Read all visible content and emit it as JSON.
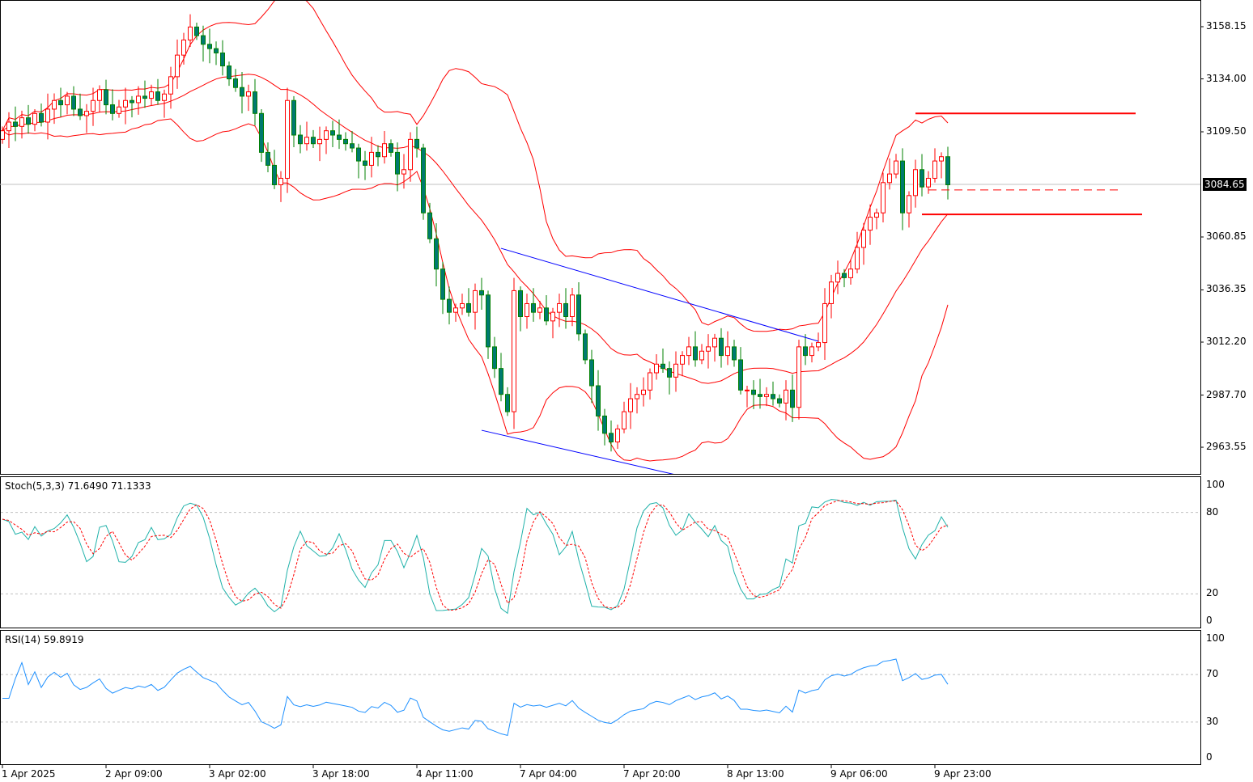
{
  "chart_data": {
    "type": "candlestick",
    "symbol_current_price": "3084.65",
    "price_axis_ticks": [
      "3158.15",
      "3134.00",
      "3109.50",
      "3084.65",
      "3060.85",
      "3036.35",
      "3012.20",
      "2987.70",
      "2963.55"
    ],
    "price_axis_values": [
      3158.15,
      3134.0,
      3109.5,
      3060.85,
      3036.35,
      3012.2,
      2987.7,
      2963.55
    ],
    "ylim": [
      2949.5,
      3170.5
    ],
    "time_labels": [
      "1 Apr 2025",
      "2 Apr 09:00",
      "3 Apr 02:00",
      "3 Apr 18:00",
      "4 Apr 11:00",
      "7 Apr 04:00",
      "7 Apr 20:00",
      "8 Apr 13:00",
      "9 Apr 06:00",
      "9 Apr 23:00"
    ],
    "time_label_every_n_candles": 16,
    "first_open": 3106,
    "closes": [
      3110,
      3114,
      3112,
      3116,
      3113,
      3118,
      3114,
      3120,
      3124,
      3122,
      3126,
      3120,
      3117,
      3119,
      3124,
      3129,
      3122,
      3118,
      3121,
      3124,
      3123,
      3126,
      3125,
      3128,
      3124,
      3127,
      3135,
      3145,
      3152,
      3158,
      3154,
      3150,
      3148,
      3146,
      3140,
      3134,
      3130,
      3126,
      3128,
      3118,
      3100,
      3094,
      3085,
      3088,
      3124,
      3108,
      3104,
      3107,
      3104,
      3106,
      3110,
      3108,
      3106,
      3104,
      3102,
      3096,
      3094,
      3100,
      3098,
      3104,
      3100,
      3090,
      3092,
      3106,
      3102,
      3072,
      3060,
      3046,
      3032,
      3026,
      3028,
      3030,
      3026,
      3036,
      3034,
      3010,
      3000,
      2988,
      2980,
      3036,
      3024,
      3030,
      3026,
      3028,
      3022,
      3026,
      3030,
      3024,
      3034,
      3016,
      3004,
      2992,
      2978,
      2970,
      2966,
      2972,
      2980,
      2986,
      2988,
      2990,
      2998,
      3002,
      3000,
      2996,
      3002,
      3006,
      3010,
      3004,
      3008,
      3010,
      3014,
      3006,
      3010,
      3004,
      2990,
      2990,
      2988,
      2987,
      2988,
      2986,
      2984,
      2990,
      2982,
      3010,
      3006,
      3010,
      3012,
      3030,
      3040,
      3044,
      3042,
      3046,
      3056,
      3064,
      3070,
      3072,
      3086,
      3090,
      3096,
      3072,
      3080,
      3092,
      3084,
      3088,
      3096,
      3098,
      3085
    ],
    "bollinger": {
      "period": 20,
      "deviation": 2
    },
    "trendlines": [
      {
        "from": {
          "candle": 77,
          "price": 3055.6
        },
        "to": {
          "candle": 126,
          "price": 3012.6
        },
        "color": "#0000ff"
      },
      {
        "from": {
          "candle": 74,
          "price": 2971.4
        },
        "to": {
          "candle": 104,
          "price": 2950.8
        },
        "color": "#0000ff"
      }
    ],
    "hlines": [
      {
        "price": 3118.0,
        "from_candle": 141,
        "to_candle": 175,
        "color": "#ff0000",
        "style": "solid"
      },
      {
        "price": 3071.3,
        "from_candle": 142,
        "to_candle": 176,
        "color": "#ff0000",
        "style": "solid"
      },
      {
        "price": 3082.6,
        "from_candle": 143,
        "to_candle": 173,
        "color": "#ff0000",
        "style": "dashed"
      }
    ],
    "stochastic": {
      "title": "Stoch(5,3,3) 71.6490 71.1333",
      "k": 5,
      "d": 3,
      "slowing": 3,
      "levels": [
        20,
        80
      ],
      "ticks": [
        "100",
        "80",
        "20",
        "0"
      ],
      "k_color": "#20b2aa",
      "d_color": "#ff0000"
    },
    "rsi": {
      "title": "RSI(14) 59.8919",
      "period": 14,
      "levels": [
        30,
        70
      ],
      "ticks": [
        "100",
        "70",
        "30",
        "0"
      ],
      "color": "#1e90ff"
    },
    "colors": {
      "bull": "#ff0000",
      "bull_fill": "#ffffff",
      "bear": "#008000",
      "bear_fill": "#007a70",
      "bands": "#ff0000"
    }
  }
}
